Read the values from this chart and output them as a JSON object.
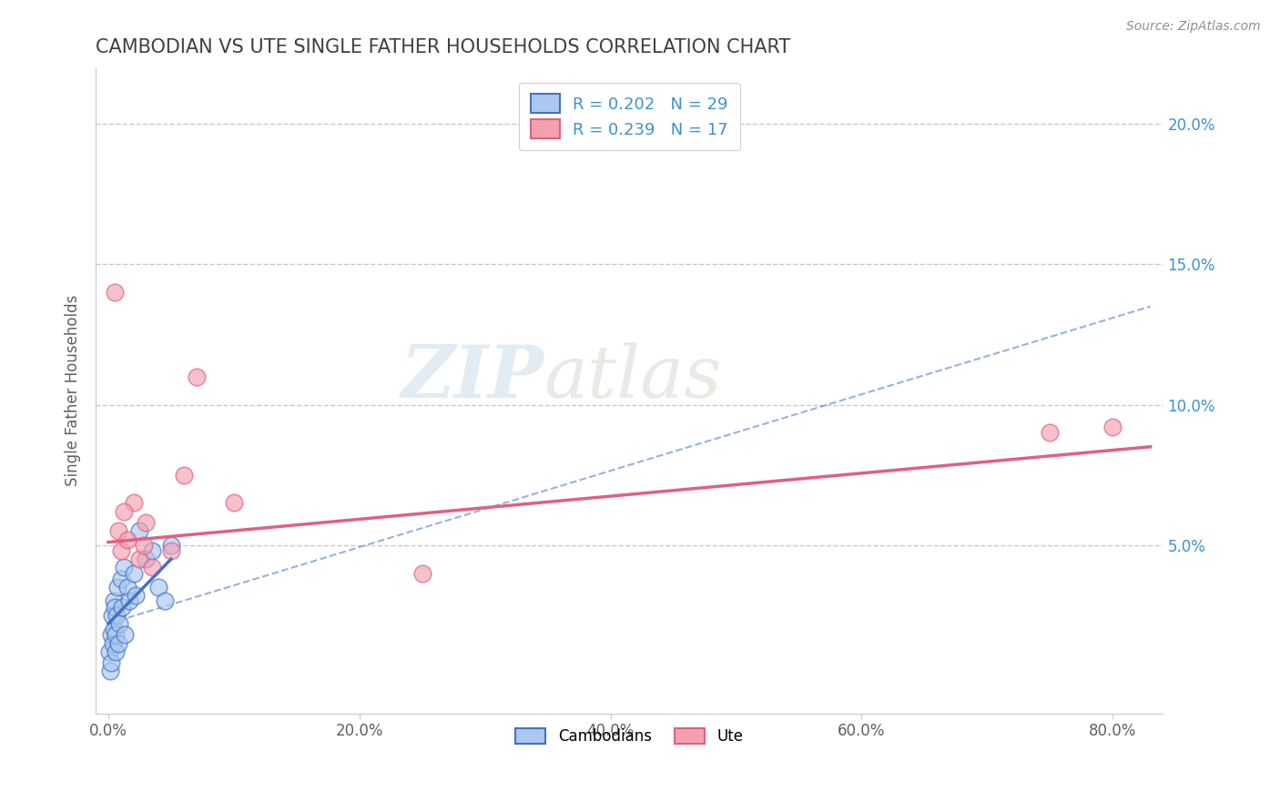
{
  "title": "CAMBODIAN VS UTE SINGLE FATHER HOUSEHOLDS CORRELATION CHART",
  "source": "Source: ZipAtlas.com",
  "ylabel": "Single Father Households",
  "x_tick_labels": [
    "0.0%",
    "20.0%",
    "40.0%",
    "60.0%",
    "80.0%"
  ],
  "x_tick_values": [
    0.0,
    20.0,
    40.0,
    60.0,
    80.0
  ],
  "y_tick_labels": [
    "5.0%",
    "10.0%",
    "15.0%",
    "20.0%"
  ],
  "y_tick_values": [
    5.0,
    10.0,
    15.0,
    20.0
  ],
  "xlim": [
    -1,
    84
  ],
  "ylim": [
    -1.0,
    22
  ],
  "legend_labels": [
    "Cambodians",
    "Ute"
  ],
  "R_cambodian": 0.202,
  "N_cambodian": 29,
  "R_ute": 0.239,
  "N_ute": 17,
  "cambodian_color": "#aac8f0",
  "cambodian_line_color": "#4472c4",
  "ute_color": "#f4a0b0",
  "ute_line_color": "#e06080",
  "watermark_zip": "ZIP",
  "watermark_atlas": "atlas",
  "cambodian_x": [
    0.1,
    0.15,
    0.2,
    0.25,
    0.3,
    0.35,
    0.4,
    0.45,
    0.5,
    0.55,
    0.6,
    0.65,
    0.7,
    0.8,
    0.9,
    1.0,
    1.1,
    1.2,
    1.3,
    1.5,
    1.7,
    2.0,
    2.2,
    2.5,
    3.0,
    3.5,
    4.0,
    4.5,
    5.0
  ],
  "cambodian_y": [
    1.2,
    0.5,
    1.8,
    0.8,
    2.5,
    1.5,
    3.0,
    2.0,
    2.8,
    1.2,
    1.8,
    2.5,
    3.5,
    1.5,
    2.2,
    3.8,
    2.8,
    4.2,
    1.8,
    3.5,
    3.0,
    4.0,
    3.2,
    5.5,
    4.5,
    4.8,
    3.5,
    3.0,
    5.0
  ],
  "ute_x": [
    0.5,
    0.8,
    1.0,
    1.5,
    2.0,
    2.5,
    3.0,
    3.5,
    5.0,
    7.0,
    10.0,
    25.0,
    75.0,
    80.0,
    1.2,
    6.0,
    2.8
  ],
  "ute_y": [
    14.0,
    5.5,
    4.8,
    5.2,
    6.5,
    4.5,
    5.8,
    4.2,
    4.8,
    11.0,
    6.5,
    4.0,
    9.0,
    9.2,
    6.2,
    7.5,
    5.0
  ],
  "background_color": "#ffffff",
  "grid_color": "#c8c8d0",
  "title_color": "#404040",
  "axis_color": "#606060",
  "right_yaxis_color": "#4090d0",
  "cam_trend_x0": 0.0,
  "cam_trend_x1": 5.0,
  "cam_trend_y0": 2.2,
  "cam_trend_y1": 4.5,
  "ute_trend_x0": 0.0,
  "ute_trend_x1": 83.0,
  "ute_trend_y0": 5.1,
  "ute_trend_y1": 8.5,
  "cam_dash_x0": 0.0,
  "cam_dash_x1": 83.0,
  "cam_dash_y0": 2.2,
  "cam_dash_y1": 13.5
}
